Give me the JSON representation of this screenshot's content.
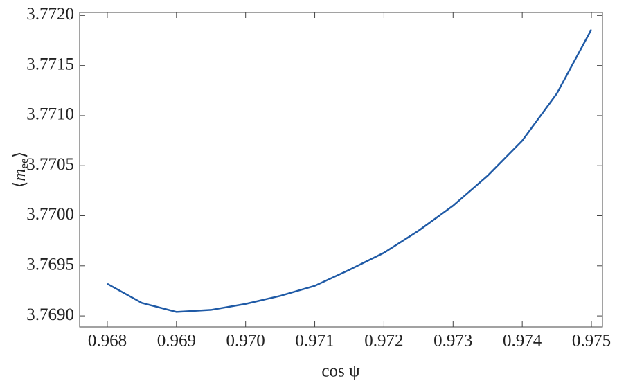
{
  "chart_data": {
    "type": "line",
    "xlabel": "cos ψ",
    "ylabel_parts": [
      "⟨",
      "m",
      "ee",
      "⟩"
    ],
    "x": [
      0.968,
      0.9685,
      0.969,
      0.9695,
      0.97,
      0.9705,
      0.971,
      0.9715,
      0.972,
      0.9725,
      0.973,
      0.9735,
      0.974,
      0.9745,
      0.975
    ],
    "series": [
      {
        "color": "#1f5aa6",
        "values": [
          3.76932,
          3.76913,
          3.76904,
          3.76906,
          3.76912,
          3.7692,
          3.7693,
          3.76946,
          3.76963,
          3.76985,
          3.7701,
          3.7704,
          3.77075,
          3.77122,
          3.77186
        ]
      }
    ],
    "xlim": [
      0.9676,
      0.97516
    ],
    "ylim": [
      3.76889,
      3.77203
    ],
    "xticks": [
      0.968,
      0.969,
      {
        "value": 0.97,
        "label": "0.970"
      },
      0.971,
      0.972,
      0.973,
      0.974,
      0.975
    ],
    "yticks": [
      {
        "value": 3.769,
        "label": "3.7690"
      },
      {
        "value": 3.7695,
        "label": "3.7695"
      },
      {
        "value": 3.77,
        "label": "3.7700"
      },
      {
        "value": 3.7705,
        "label": "3.7705"
      },
      {
        "value": 3.771,
        "label": "3.7710"
      },
      {
        "value": 3.7715,
        "label": "3.7715"
      },
      {
        "value": 3.772,
        "label": "3.7720"
      }
    ]
  }
}
